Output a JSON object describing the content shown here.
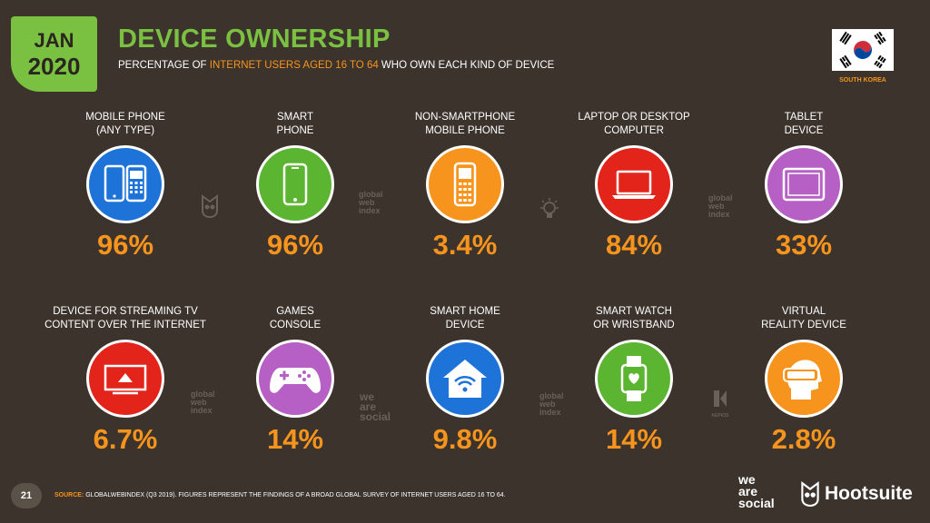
{
  "header": {
    "month": "JAN",
    "year": "2020",
    "title": "DEVICE OWNERSHIP",
    "subtitle_pre": "PERCENTAGE OF ",
    "subtitle_highlight": "INTERNET USERS AGED 16 TO 64",
    "subtitle_post": " WHO OWN EACH KIND OF DEVICE",
    "country": "SOUTH KOREA"
  },
  "colors": {
    "background": "#3b332c",
    "accent_green": "#7ac142",
    "accent_orange": "#f7941d"
  },
  "chart_data": {
    "type": "table",
    "title": "DEVICE OWNERSHIP",
    "subtitle": "PERCENTAGE OF INTERNET USERS AGED 16 TO 64 WHO OWN EACH KIND OF DEVICE",
    "categories": [
      "MOBILE PHONE (ANY TYPE)",
      "SMART PHONE",
      "NON-SMARTPHONE MOBILE PHONE",
      "LAPTOP OR DESKTOP COMPUTER",
      "TABLET DEVICE",
      "DEVICE FOR STREAMING TV CONTENT OVER THE INTERNET",
      "GAMES CONSOLE",
      "SMART HOME DEVICE",
      "SMART WATCH OR WRISTBAND",
      "VIRTUAL REALITY DEVICE"
    ],
    "values": [
      96,
      96,
      3.4,
      84,
      33,
      6.7,
      14,
      9.8,
      14,
      2.8
    ],
    "unit": "%"
  },
  "devices": [
    {
      "line1": "MOBILE PHONE",
      "line2": "(ANY TYPE)",
      "value": "96%",
      "color": "#1e73d8",
      "icon": "mobile-phones-icon"
    },
    {
      "line1": "SMART",
      "line2": "PHONE",
      "value": "96%",
      "color": "#5bb531",
      "icon": "smartphone-icon"
    },
    {
      "line1": "NON-SMARTPHONE",
      "line2": "MOBILE PHONE",
      "value": "3.4%",
      "color": "#f7941d",
      "icon": "feature-phone-icon"
    },
    {
      "line1": "LAPTOP OR DESKTOP",
      "line2": "COMPUTER",
      "value": "84%",
      "color": "#e3241b",
      "icon": "laptop-icon"
    },
    {
      "line1": "TABLET",
      "line2": "DEVICE",
      "value": "33%",
      "color": "#b660c5",
      "icon": "tablet-icon"
    },
    {
      "line1": "DEVICE FOR STREAMING TV",
      "line2": "CONTENT OVER THE INTERNET",
      "value": "6.7%",
      "color": "#e3241b",
      "icon": "streaming-tv-icon"
    },
    {
      "line1": "GAMES",
      "line2": "CONSOLE",
      "value": "14%",
      "color": "#b660c5",
      "icon": "gamepad-icon"
    },
    {
      "line1": "SMART HOME",
      "line2": "DEVICE",
      "value": "9.8%",
      "color": "#1e73d8",
      "icon": "smart-home-icon"
    },
    {
      "line1": "SMART WATCH",
      "line2": "OR WRISTBAND",
      "value": "14%",
      "color": "#5bb531",
      "icon": "smartwatch-icon"
    },
    {
      "line1": "VIRTUAL",
      "line2": "REALITY DEVICE",
      "value": "2.8%",
      "color": "#f7941d",
      "icon": "vr-headset-icon"
    }
  ],
  "source_logos": {
    "gwi_l1": "global",
    "gwi_l2": "web",
    "gwi_l3": "index",
    "was_l1": "we",
    "was_l2": "are",
    "was_l3": "social",
    "kepios": "KEPIOS"
  },
  "footer": {
    "page_number": "21",
    "source_label": "SOURCE:",
    "source_text": " GLOBALWEBINDEX (Q3 2019). FIGURES REPRESENT THE FINDINGS OF A BROAD GLOBAL SURVEY OF INTERNET USERS AGED 16 TO 64.",
    "brand_was_1": "we",
    "brand_was_2": "are",
    "brand_was_3": "social",
    "brand_hootsuite": "Hootsuite"
  }
}
